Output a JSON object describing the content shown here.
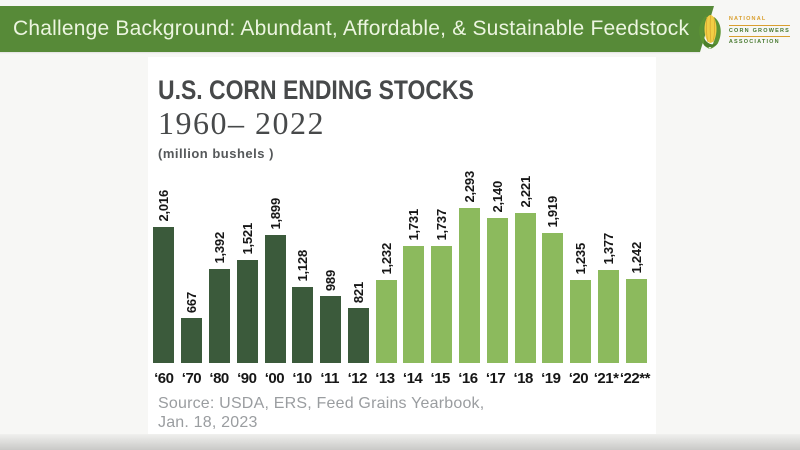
{
  "header": {
    "title": "Challenge Background: Abundant, Affordable, & Sustainable Feedstock",
    "bg_color": "#578a38",
    "text_color": "#ecf5e0"
  },
  "logo": {
    "org_line1": "NATIONAL",
    "org_line2": "CORN GROWERS",
    "org_line3": "ASSOCIATION",
    "gold_color": "#d99f2e",
    "green_color": "#47792f",
    "cob_color": "#f2ce45",
    "husk_color": "#5d9434"
  },
  "chart_data": {
    "type": "bar",
    "title": "U.S. CORN ENDING STOCKS",
    "subtitle": "1960– 2022",
    "units_label": "(million bushels )",
    "categories": [
      "‘60",
      "‘70",
      "‘80",
      "‘90",
      "‘00",
      "‘10",
      "‘11",
      "‘12",
      "‘13",
      "‘14",
      "‘15",
      "‘16",
      "‘17",
      "‘18",
      "‘19",
      "‘20",
      "‘21*",
      "‘22**"
    ],
    "values": [
      2016,
      667,
      1392,
      1521,
      1899,
      1128,
      989,
      821,
      1232,
      1731,
      1737,
      2293,
      2140,
      2221,
      1919,
      1235,
      1377,
      1242
    ],
    "value_labels": [
      "2,016",
      "667",
      "1,392",
      "1,521",
      "1,899",
      "1,128",
      "989",
      "821",
      "1,232",
      "1,731",
      "1,737",
      "2,293",
      "2,140",
      "2,221",
      "1,919",
      "1,235",
      "1,377",
      "1,242"
    ],
    "color_groups": [
      "dark",
      "dark",
      "dark",
      "dark",
      "dark",
      "dark",
      "dark",
      "dark",
      "light",
      "light",
      "light",
      "light",
      "light",
      "light",
      "light",
      "light",
      "light",
      "light"
    ],
    "colors": {
      "dark": "#3b5a3b",
      "light": "#8cba5d"
    },
    "ylim": [
      0,
      2293
    ],
    "xlabel": "",
    "ylabel": "",
    "grid": "off",
    "legend": "none",
    "source_line1": "Source: USDA, ERS, Feed Grains Yearbook,",
    "source_line2": "Jan. 18, 2023"
  }
}
